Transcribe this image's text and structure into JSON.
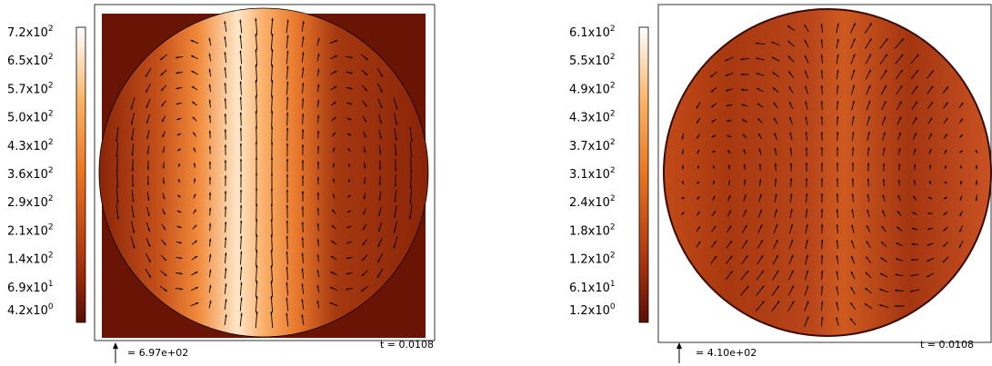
{
  "panels": [
    {
      "colorbar_labels": [
        {
          "mantissa": "7.2x10",
          "exp": "2"
        },
        {
          "mantissa": "6.5x10",
          "exp": "2"
        },
        {
          "mantissa": "5.7x10",
          "exp": "2"
        },
        {
          "mantissa": "5.0x10",
          "exp": "2"
        },
        {
          "mantissa": "4.3x10",
          "exp": "2"
        },
        {
          "mantissa": "3.6x10",
          "exp": "2"
        },
        {
          "mantissa": "2.9x10",
          "exp": "2"
        },
        {
          "mantissa": "2.1x10",
          "exp": "2"
        },
        {
          "mantissa": "1.4x10",
          "exp": "2"
        },
        {
          "mantissa": "6.9x10",
          "exp": "1"
        },
        {
          "mantissa": "4.2x10",
          "exp": "0"
        }
      ],
      "scale_label": "= 6.97e+02",
      "time_label": "t =  0.0108"
    },
    {
      "colorbar_labels": [
        {
          "mantissa": "6.1x10",
          "exp": "2"
        },
        {
          "mantissa": "5.5x10",
          "exp": "2"
        },
        {
          "mantissa": "4.9x10",
          "exp": "2"
        },
        {
          "mantissa": "4.3x10",
          "exp": "2"
        },
        {
          "mantissa": "3.7x10",
          "exp": "2"
        },
        {
          "mantissa": "3.1x10",
          "exp": "2"
        },
        {
          "mantissa": "2.4x10",
          "exp": "2"
        },
        {
          "mantissa": "1.8x10",
          "exp": "2"
        },
        {
          "mantissa": "1.2x10",
          "exp": "2"
        },
        {
          "mantissa": "6.1x10",
          "exp": "1"
        },
        {
          "mantissa": "1.2x10",
          "exp": "0"
        }
      ],
      "scale_label": "= 4.10e+02",
      "time_label": "t =  0.0108"
    }
  ]
}
